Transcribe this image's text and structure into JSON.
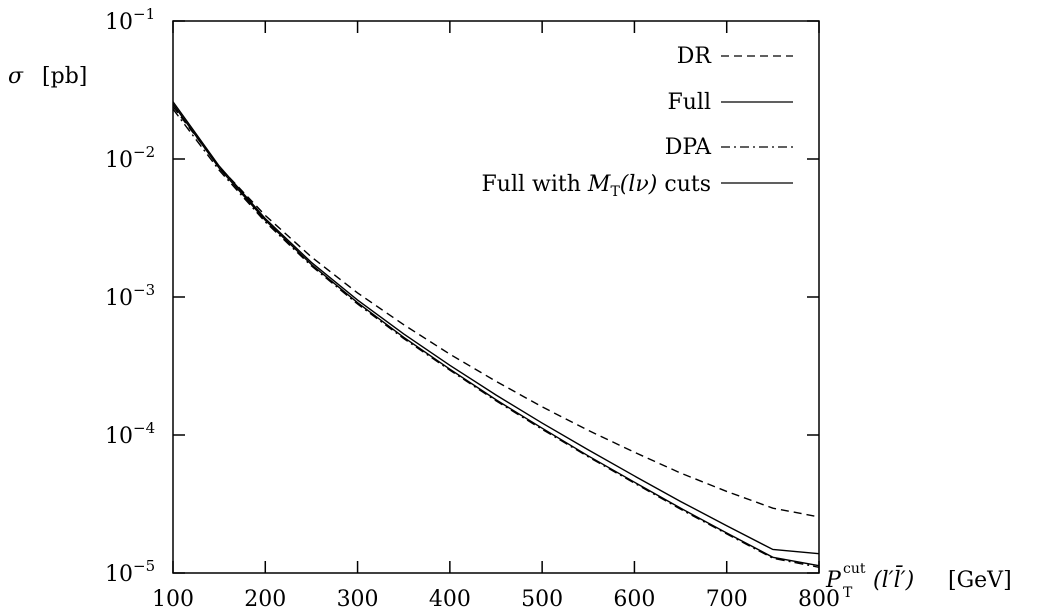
{
  "chart_data": {
    "type": "line",
    "x_scale": "linear",
    "y_scale": "log",
    "xlim": [
      100,
      800
    ],
    "ylim": [
      1e-05,
      0.1
    ],
    "x_ticks": [
      100,
      200,
      300,
      400,
      500,
      600,
      700,
      800
    ],
    "x_tick_labels": [
      "100",
      "200",
      "300",
      "400",
      "500",
      "600",
      "700",
      "800"
    ],
    "y_ticks": [
      1e-05,
      0.0001,
      0.001,
      0.01,
      0.1
    ],
    "y_tick_labels": [
      {
        "base": "10",
        "exp": "−5"
      },
      {
        "base": "10",
        "exp": "−4"
      },
      {
        "base": "10",
        "exp": "−3"
      },
      {
        "base": "10",
        "exp": "−2"
      },
      {
        "base": "10",
        "exp": "−1"
      }
    ],
    "ylabel": {
      "symbol": "σ",
      "unit": "[pb]"
    },
    "xlabel": {
      "main": "P",
      "sub": "T",
      "sup": "cut",
      "arg": "(l′l̄′)",
      "unit": "[GeV]"
    },
    "grid": false,
    "legend_position": "top-right",
    "x": [
      100,
      150,
      200,
      250,
      300,
      350,
      400,
      450,
      500,
      550,
      600,
      650,
      700,
      750,
      800
    ],
    "series": [
      {
        "name": "DR",
        "dash": "dashed",
        "values": [
          0.024,
          0.0088,
          0.0039,
          0.00195,
          0.00107,
          0.00063,
          0.000385,
          0.000245,
          0.00016,
          0.000108,
          7.5e-05,
          5.3e-05,
          3.9e-05,
          2.95e-05,
          2.55e-05
        ]
      },
      {
        "name": "Full",
        "dash": "solid",
        "values": [
          0.025,
          0.0086,
          0.0036,
          0.00172,
          0.00091,
          0.00051,
          0.0003,
          0.00018,
          0.000112,
          7.05e-05,
          4.55e-05,
          2.95e-05,
          1.95e-05,
          1.3e-05,
          1.13e-05
        ]
      },
      {
        "name": "DPA",
        "dash": "dashdot",
        "values": [
          0.023,
          0.0083,
          0.0035,
          0.00168,
          0.00089,
          0.0005,
          0.000295,
          0.000177,
          0.00011,
          6.95e-05,
          4.48e-05,
          2.9e-05,
          1.92e-05,
          1.28e-05,
          1.1e-05
        ]
      },
      {
        "name": "Full with M_T(lν) cuts",
        "dash": "solid",
        "values": [
          0.026,
          0.0089,
          0.0037,
          0.00178,
          0.00095,
          0.00054,
          0.00032,
          0.000195,
          0.000122,
          7.8e-05,
          5.05e-05,
          3.3e-05,
          2.2e-05,
          1.48e-05,
          1.38e-05
        ]
      }
    ],
    "legend": [
      {
        "text": "DR"
      },
      {
        "text": "Full"
      },
      {
        "text": "DPA"
      },
      {
        "text_pre": "Full with ",
        "sym": "M",
        "sub": "T",
        "arg": "(lν)",
        "text_post": " cuts"
      }
    ]
  }
}
